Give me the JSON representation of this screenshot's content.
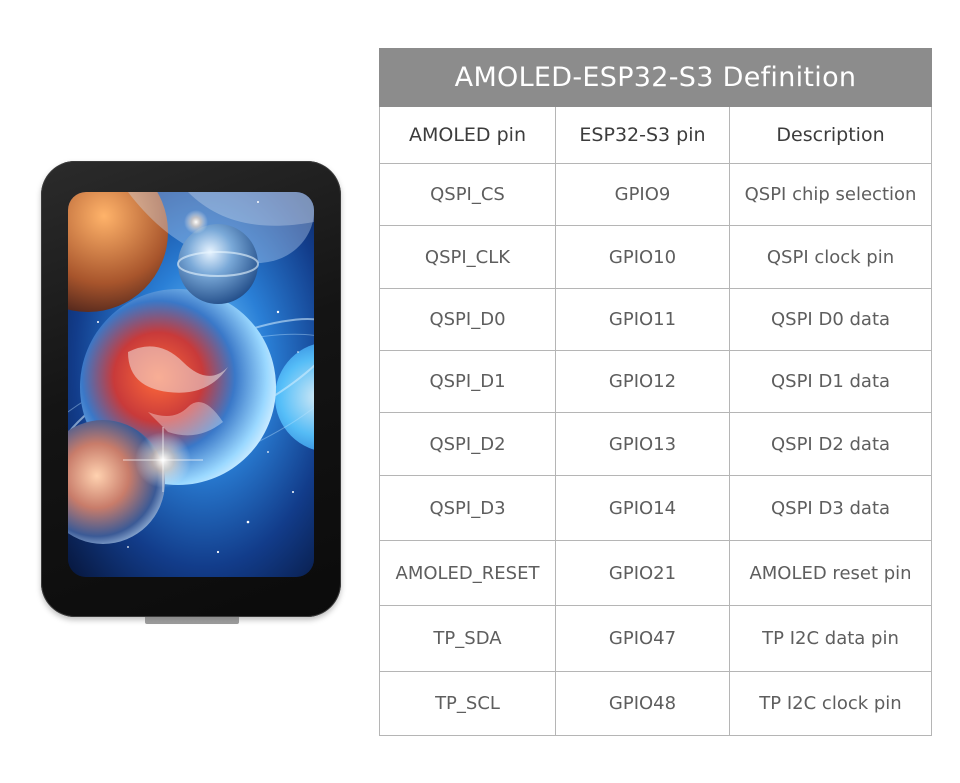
{
  "table": {
    "title": "AMOLED-ESP32-S3 Definition",
    "headers": [
      "AMOLED pin",
      "ESP32-S3 pin",
      "Description"
    ],
    "rows": [
      [
        "QSPI_CS",
        "GPIO9",
        "QSPI chip selection"
      ],
      [
        "QSPI_CLK",
        "GPIO10",
        "QSPI clock pin"
      ],
      [
        "QSPI_D0",
        "GPIO11",
        "QSPI D0 data"
      ],
      [
        "QSPI_D1",
        "GPIO12",
        "QSPI D1 data"
      ],
      [
        "QSPI_D2",
        "GPIO13",
        "QSPI D2 data"
      ],
      [
        "QSPI_D3",
        "GPIO14",
        "QSPI D3 data"
      ],
      [
        "AMOLED_RESET",
        "GPIO21",
        "AMOLED reset pin"
      ],
      [
        "TP_SDA",
        "GPIO47",
        "TP I2C data pin"
      ],
      [
        "TP_SCL",
        "GPIO48",
        "TP I2C clock pin"
      ]
    ]
  },
  "colors": {
    "title_bar": "#8c8c8c",
    "border": "#b5b5b5",
    "header_text": "#3c3c3c",
    "cell_text": "#5e5e5e"
  },
  "device": {
    "screen_art": "space scene with planets"
  }
}
